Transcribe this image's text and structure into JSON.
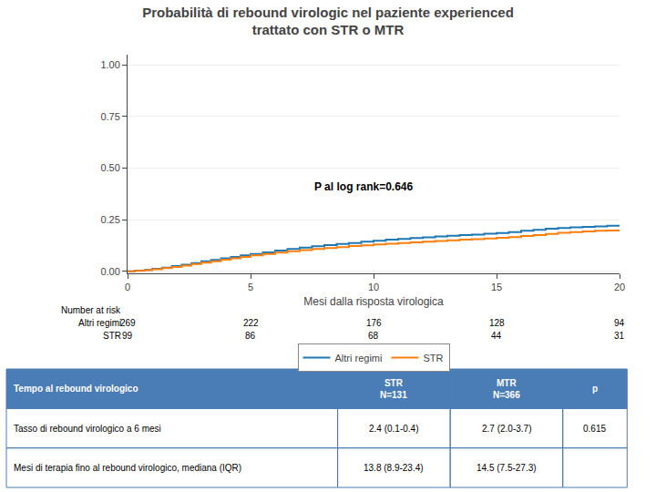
{
  "chart_data": {
    "type": "step",
    "title": [
      "Probabilità di rebound virologic nel paziente experienced",
      "trattato con STR o MTR"
    ],
    "xlabel": "Mesi dalla risposta virologica",
    "xlim": [
      0,
      20
    ],
    "ylim": [
      -0.01,
      1.05
    ],
    "xticks": [
      0,
      5,
      10,
      15,
      20
    ],
    "yticks": [
      {
        "value": 0.0,
        "label": "0.00"
      },
      {
        "value": 0.25,
        "label": "0.25"
      },
      {
        "value": 0.5,
        "label": "0.50"
      },
      {
        "value": 0.75,
        "label": "0.75"
      },
      {
        "value": 1.0,
        "label": "1.00"
      }
    ],
    "grid": "y",
    "annotations": [
      {
        "text": "P al log rank=0.646",
        "x": 7.5,
        "y": 0.37
      }
    ],
    "series": [
      {
        "name": "Altri regimi",
        "x": [
          0,
          0.3,
          0.7,
          1.0,
          1.4,
          1.8,
          2.2,
          2.6,
          3.0,
          3.4,
          3.8,
          4.2,
          4.6,
          5.0,
          5.5,
          6.0,
          6.5,
          7.0,
          7.5,
          8.0,
          8.5,
          9.0,
          9.5,
          10.0,
          10.5,
          11.0,
          11.5,
          12.0,
          12.5,
          13.0,
          13.5,
          14.0,
          14.5,
          15.0,
          15.5,
          16.0,
          16.5,
          17.0,
          17.5,
          18.0,
          18.5,
          19.0,
          19.5,
          20.0
        ],
        "values": [
          0.0,
          0.003,
          0.007,
          0.012,
          0.018,
          0.025,
          0.032,
          0.04,
          0.048,
          0.055,
          0.063,
          0.07,
          0.077,
          0.084,
          0.092,
          0.1,
          0.108,
          0.115,
          0.121,
          0.127,
          0.132,
          0.137,
          0.143,
          0.148,
          0.153,
          0.157,
          0.161,
          0.165,
          0.169,
          0.172,
          0.175,
          0.178,
          0.182,
          0.185,
          0.19,
          0.196,
          0.201,
          0.206,
          0.21,
          0.213,
          0.215,
          0.218,
          0.221,
          0.223
        ]
      },
      {
        "name": "STR",
        "x": [
          0,
          0.3,
          0.7,
          1.0,
          1.4,
          1.8,
          2.2,
          2.6,
          3.0,
          3.4,
          3.8,
          4.2,
          4.6,
          5.0,
          5.5,
          6.0,
          6.5,
          7.0,
          7.5,
          8.0,
          8.5,
          9.0,
          9.5,
          10.0,
          10.5,
          11.0,
          11.5,
          12.0,
          12.5,
          13.0,
          13.5,
          14.0,
          14.5,
          15.0,
          15.5,
          16.0,
          16.5,
          17.0,
          17.5,
          18.0,
          18.5,
          19.0,
          19.5,
          20.0
        ],
        "values": [
          0.0,
          0.002,
          0.005,
          0.01,
          0.015,
          0.021,
          0.028,
          0.035,
          0.042,
          0.049,
          0.056,
          0.063,
          0.07,
          0.077,
          0.084,
          0.091,
          0.097,
          0.103,
          0.108,
          0.113,
          0.117,
          0.122,
          0.126,
          0.13,
          0.134,
          0.137,
          0.14,
          0.143,
          0.147,
          0.15,
          0.153,
          0.156,
          0.159,
          0.162,
          0.166,
          0.171,
          0.176,
          0.181,
          0.186,
          0.19,
          0.193,
          0.196,
          0.198,
          0.2
        ]
      }
    ],
    "number_at_risk": {
      "title": "Number at risk",
      "x": [
        0,
        5,
        10,
        15,
        20
      ],
      "rows": [
        {
          "label": "Altri regimi",
          "values": [
            269,
            222,
            176,
            128,
            94
          ]
        },
        {
          "label": "STR",
          "values": [
            99,
            86,
            68,
            44,
            31
          ]
        }
      ]
    },
    "table": {
      "header_color": "#4a7cb5",
      "header_text_color": "#ffffff",
      "border_color": "#4a7cb5",
      "header": [
        "Tempo al rebound virologico",
        "STR\nN=131",
        "MTR\nN=366",
        "p"
      ],
      "rows": [
        [
          "Tasso di rebound virologico a 6 mesi",
          "2.4 (0.1-0.4)",
          "2.7 (2.0-3.7)",
          "0.615"
        ],
        [
          "Mesi di terapia fino al rebound virologico, mediana (IQR)",
          "13.8 (8.9-23.4)",
          "14.5 (7.5-27.3)",
          null
        ]
      ]
    }
  }
}
